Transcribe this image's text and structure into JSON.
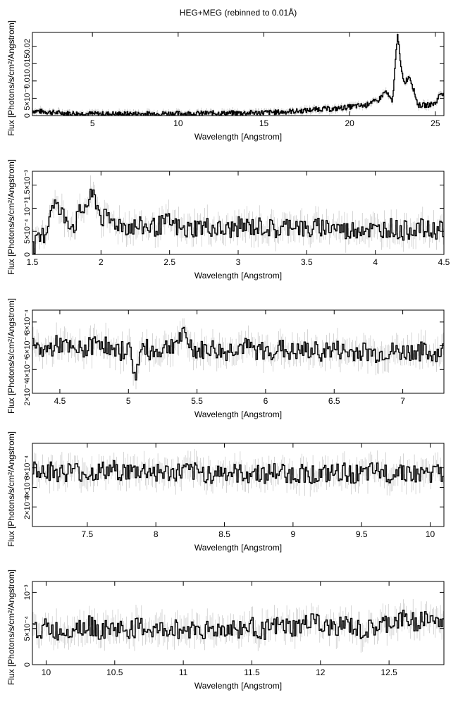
{
  "title": "HEG+MEG (rebinned to 0.01Å)",
  "chart_data": [
    {
      "type": "line",
      "xlabel": "Wavelength [Angstrom]",
      "ylabel": "Flux [Photons/s/cm²/Angstrom]",
      "xlim": [
        1.5,
        25.5
      ],
      "ylim": [
        0,
        0.024
      ],
      "xticks": [
        {
          "v": 5,
          "label": "5"
        },
        {
          "v": 10,
          "label": "10"
        },
        {
          "v": 15,
          "label": "15"
        },
        {
          "v": 20,
          "label": "20"
        },
        {
          "v": 25,
          "label": "25"
        }
      ],
      "yticks": [
        {
          "v": 0,
          "label": "0"
        },
        {
          "v": 0.005,
          "label": "5×10⁻³"
        },
        {
          "v": 0.01,
          "label": "0.01"
        },
        {
          "v": 0.015,
          "label": "0.015"
        },
        {
          "v": 0.02,
          "label": "0.02"
        }
      ],
      "series": [
        {
          "x": [
            1.5,
            2,
            3,
            4,
            5,
            6,
            7,
            8,
            9,
            10,
            11,
            12,
            13,
            14,
            15,
            16,
            16.5,
            17,
            17.5,
            18,
            18.5,
            19,
            19.5,
            20,
            20.5,
            21,
            21.2,
            21.6,
            22.1,
            22.5,
            22.8,
            23.0,
            23.2,
            23.5,
            24,
            24.5,
            25,
            25.3
          ],
          "y": [
            0.0014,
            0.0012,
            0.0008,
            0.0006,
            0.0005,
            0.0005,
            0.0005,
            0.0005,
            0.0006,
            0.0006,
            0.0006,
            0.0007,
            0.0007,
            0.0008,
            0.0009,
            0.001,
            0.0012,
            0.0013,
            0.0015,
            0.0018,
            0.002,
            0.0018,
            0.0022,
            0.0025,
            0.0028,
            0.003,
            0.004,
            0.004,
            0.007,
            0.0038,
            0.024,
            0.0135,
            0.0095,
            0.0115,
            0.003,
            0.003,
            0.0035,
            0.0065
          ]
        }
      ]
    },
    {
      "type": "line",
      "xlabel": "Wavelength [Angstrom]",
      "ylabel": "Flux [Photons/s/cm²/Angstrom]",
      "xlim": [
        1.5,
        4.5
      ],
      "ylim": [
        0,
        0.0018
      ],
      "xticks": [
        {
          "v": 1.5,
          "label": "1.5"
        },
        {
          "v": 2,
          "label": "2"
        },
        {
          "v": 2.5,
          "label": "2.5"
        },
        {
          "v": 3,
          "label": "3"
        },
        {
          "v": 3.5,
          "label": "3.5"
        },
        {
          "v": 4,
          "label": "4"
        },
        {
          "v": 4.5,
          "label": "4.5"
        }
      ],
      "yticks": [
        {
          "v": 0,
          "label": "0"
        },
        {
          "v": 0.0005,
          "label": "5×10⁻⁴"
        },
        {
          "v": 0.001,
          "label": "10⁻³"
        },
        {
          "v": 0.0015,
          "label": "1.5×10⁻³"
        }
      ],
      "series": [
        {
          "x": [
            1.5,
            1.55,
            1.6,
            1.65,
            1.7,
            1.75,
            1.8,
            1.85,
            1.9,
            1.95,
            2,
            2.1,
            2.2,
            2.3,
            2.4,
            2.5,
            2.6,
            2.7,
            2.8,
            2.9,
            3,
            3.1,
            3.2,
            3.3,
            3.4,
            3.5,
            3.6,
            3.7,
            3.8,
            3.9,
            4,
            4.1,
            4.2,
            4.3,
            4.4,
            4.5
          ],
          "y": [
            0.0001,
            0.0003,
            0.0005,
            0.0012,
            0.0009,
            0.0008,
            0.0006,
            0.0009,
            0.0011,
            0.0013,
            0.0008,
            0.0007,
            0.0006,
            0.0006,
            0.0006,
            0.0007,
            0.0005,
            0.0006,
            0.0006,
            0.0005,
            0.0006,
            0.0006,
            0.0006,
            0.0005,
            0.0007,
            0.0005,
            0.0006,
            0.0006,
            0.0005,
            0.0006,
            0.0005,
            0.0006,
            0.0005,
            0.0006,
            0.0005,
            0.0006
          ]
        }
      ]
    },
    {
      "type": "line",
      "xlabel": "Wavelength [Angstrom]",
      "ylabel": "Flux [Photons/s/cm²/Angstrom]",
      "xlim": [
        4.3,
        7.3
      ],
      "ylim": [
        0.0002,
        0.0009
      ],
      "xticks": [
        {
          "v": 4.5,
          "label": "4.5"
        },
        {
          "v": 5,
          "label": "5"
        },
        {
          "v": 5.5,
          "label": "5.5"
        },
        {
          "v": 6,
          "label": "6"
        },
        {
          "v": 6.5,
          "label": "6.5"
        },
        {
          "v": 7,
          "label": "7"
        }
      ],
      "yticks": [
        {
          "v": 0.0002,
          "label": "2×10⁻⁴"
        },
        {
          "v": 0.0004,
          "label": "4×10⁻⁴"
        },
        {
          "v": 0.0006,
          "label": "6×10⁻⁴"
        },
        {
          "v": 0.0008,
          "label": "8×10⁻⁴"
        }
      ],
      "series": [
        {
          "x": [
            4.3,
            4.4,
            4.5,
            4.6,
            4.7,
            4.8,
            4.9,
            5,
            5.05,
            5.1,
            5.2,
            5.3,
            5.4,
            5.5,
            5.6,
            5.7,
            5.8,
            5.9,
            6,
            6.1,
            6.2,
            6.3,
            6.4,
            6.5,
            6.6,
            6.7,
            6.8,
            6.9,
            7,
            7.1,
            7.2,
            7.3
          ],
          "y": [
            0.00058,
            0.00056,
            0.00062,
            0.00055,
            0.00058,
            0.00065,
            0.00052,
            0.0006,
            0.00035,
            0.00058,
            0.00055,
            0.0006,
            0.00068,
            0.00055,
            0.00058,
            0.00054,
            0.0006,
            0.00057,
            0.00055,
            0.00058,
            0.00054,
            0.00056,
            0.00055,
            0.00057,
            0.00054,
            0.00056,
            0.00053,
            0.00055,
            0.00054,
            0.00056,
            0.00053,
            0.00055
          ]
        }
      ]
    },
    {
      "type": "line",
      "xlabel": "Wavelength [Angstrom]",
      "ylabel": "Flux [Photons/s/cm²/Angstrom]",
      "xlim": [
        7.1,
        10.1
      ],
      "ylim": [
        0,
        0.00085
      ],
      "xticks": [
        {
          "v": 7.5,
          "label": "7.5"
        },
        {
          "v": 8,
          "label": "8"
        },
        {
          "v": 8.5,
          "label": "8.5"
        },
        {
          "v": 9,
          "label": "9"
        },
        {
          "v": 9.5,
          "label": "9.5"
        },
        {
          "v": 10,
          "label": "10"
        }
      ],
      "yticks": [
        {
          "v": 0.0002,
          "label": "2×10⁻⁴"
        },
        {
          "v": 0.0004,
          "label": "4×10⁻⁴"
        },
        {
          "v": 0.0006,
          "label": "6×10⁻⁴"
        }
      ],
      "series": [
        {
          "x": [
            7.1,
            7.2,
            7.3,
            7.4,
            7.5,
            7.6,
            7.7,
            7.8,
            7.9,
            8,
            8.1,
            8.2,
            8.3,
            8.4,
            8.5,
            8.6,
            8.7,
            8.8,
            8.9,
            9,
            9.1,
            9.2,
            9.3,
            9.4,
            9.5,
            9.6,
            9.7,
            9.8,
            9.9,
            10,
            10.1
          ],
          "y": [
            0.0006,
            0.00058,
            0.00055,
            0.00057,
            0.00054,
            0.00056,
            0.00058,
            0.00055,
            0.00057,
            0.00056,
            0.00054,
            0.00056,
            0.00055,
            0.00054,
            0.00056,
            0.00053,
            0.00055,
            0.00054,
            0.00056,
            0.00053,
            0.00055,
            0.00052,
            0.00054,
            0.00055,
            0.00052,
            0.00056,
            0.00054,
            0.00058,
            0.00052,
            0.00055,
            0.00053
          ]
        }
      ]
    },
    {
      "type": "line",
      "xlabel": "Wavelength [Angstrom]",
      "ylabel": "Flux [Photons/s/cm²/Angstrom]",
      "xlim": [
        9.9,
        12.9
      ],
      "ylim": [
        0,
        0.00115
      ],
      "xticks": [
        {
          "v": 10,
          "label": "10"
        },
        {
          "v": 10.5,
          "label": "10.5"
        },
        {
          "v": 11,
          "label": "11"
        },
        {
          "v": 11.5,
          "label": "11.5"
        },
        {
          "v": 12,
          "label": "12"
        },
        {
          "v": 12.5,
          "label": "12.5"
        }
      ],
      "yticks": [
        {
          "v": 0,
          "label": "0"
        },
        {
          "v": 0.0005,
          "label": "5×10⁻⁴"
        },
        {
          "v": 0.001,
          "label": "10⁻³"
        }
      ],
      "series": [
        {
          "x": [
            9.9,
            10,
            10.1,
            10.2,
            10.3,
            10.4,
            10.5,
            10.6,
            10.7,
            10.8,
            10.9,
            11,
            11.1,
            11.2,
            11.3,
            11.4,
            11.5,
            11.6,
            11.7,
            11.8,
            11.9,
            11.95,
            12,
            12.1,
            12.2,
            12.3,
            12.4,
            12.5,
            12.6,
            12.7,
            12.8,
            12.9
          ],
          "y": [
            0.00048,
            0.0005,
            0.00045,
            0.00052,
            0.00055,
            0.00047,
            0.0005,
            0.00048,
            0.00052,
            0.00046,
            0.0005,
            0.00048,
            0.00051,
            0.00047,
            0.0005,
            0.00049,
            0.00052,
            0.00048,
            0.00053,
            0.0005,
            0.00055,
            0.0007,
            0.00048,
            0.00052,
            0.00055,
            0.00045,
            0.0005,
            0.00058,
            0.00062,
            0.0006,
            0.00065,
            0.00052
          ]
        }
      ]
    }
  ]
}
